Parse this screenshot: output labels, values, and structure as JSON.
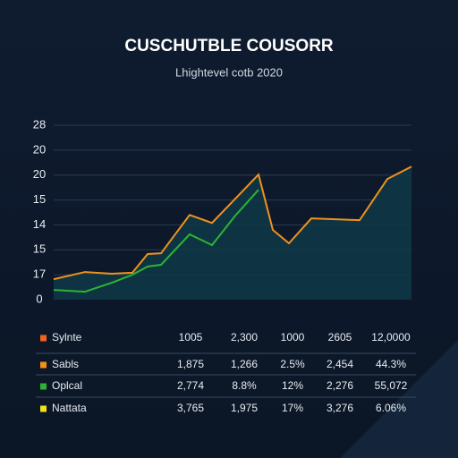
{
  "chart_data": {
    "type": "line",
    "title": "CUSCHUTBLE COUSORR",
    "subtitle": "Lhightevel cotb 2020",
    "y_labels": [
      "0",
      "17",
      "15",
      "14",
      "15",
      "20",
      "20",
      "28"
    ],
    "ylim": [
      0,
      7
    ],
    "xlim": [
      0,
      400
    ],
    "x": [
      0,
      35,
      65,
      88,
      105,
      120,
      152,
      177,
      203,
      229,
      245,
      263,
      288,
      342,
      373,
      400
    ],
    "series": [
      {
        "color": "#f0921c",
        "fill": "#0f3a48",
        "values": [
          0.82,
          1.11,
          1.04,
          1.08,
          1.83,
          1.86,
          3.4,
          3.08,
          4.05,
          5.02,
          2.8,
          2.26,
          3.26,
          3.19,
          4.84,
          5.34
        ]
      },
      {
        "color": "#2bb531",
        "values": [
          0.39,
          0.32,
          0.68,
          1.0,
          1.33,
          1.4,
          2.62,
          2.19,
          3.37,
          4.41,
          null,
          null,
          null,
          null,
          null,
          null
        ]
      }
    ],
    "table": [
      {
        "name": "Sylnte",
        "color": "#f0641c",
        "cells": [
          "1005",
          "2,300",
          "1000",
          "2605",
          "12,0000"
        ]
      },
      {
        "name": "Sabls",
        "color": "#f0921c",
        "cells": [
          "1,875",
          "1,266",
          "2.5%",
          "2,454",
          "44.3%"
        ]
      },
      {
        "name": "Oplcal",
        "color": "#2bb531",
        "cells": [
          "2,774",
          "8.8%",
          "12%",
          "2,276",
          "55,072"
        ]
      },
      {
        "name": "Nattata",
        "color": "#f2e21c",
        "cells": [
          "3,765",
          "1,975",
          "17%",
          "3,276",
          "6.06%"
        ]
      }
    ]
  }
}
